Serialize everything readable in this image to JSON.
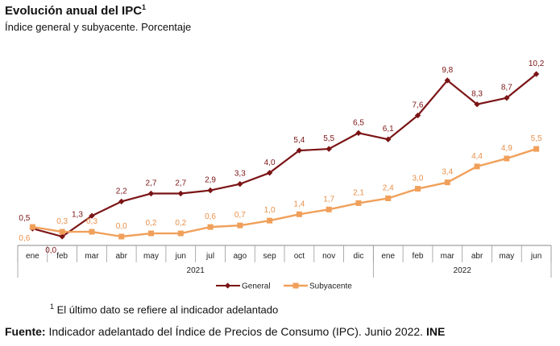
{
  "header": {
    "title": "Evolución anual del IPC",
    "title_sup": "1",
    "subtitle": "Índice general y subyacente. Porcentaje"
  },
  "chart_data": {
    "type": "line",
    "categories": [
      "ene",
      "feb",
      "mar",
      "abr",
      "may",
      "jun",
      "jul",
      "ago",
      "sep",
      "oct",
      "nov",
      "dic",
      "ene",
      "feb",
      "mar",
      "abr",
      "may",
      "jun"
    ],
    "year_groups": [
      {
        "label": "2021",
        "start": 0,
        "end": 11
      },
      {
        "label": "2022",
        "start": 12,
        "end": 17
      }
    ],
    "series": [
      {
        "name": "General",
        "color": "#7b1416",
        "values": [
          0.5,
          0.0,
          1.3,
          2.2,
          2.7,
          2.7,
          2.9,
          3.3,
          4.0,
          5.4,
          5.5,
          6.5,
          6.1,
          7.6,
          9.8,
          8.3,
          8.7,
          10.2
        ],
        "labels": [
          "0,5",
          "0,0",
          "1,3",
          "2,2",
          "2,7",
          "2,7",
          "2,9",
          "3,3",
          "4,0",
          "5,4",
          "5,5",
          "6,5",
          "6,1",
          "7,6",
          "9,8",
          "8,3",
          "8,7",
          "10,2"
        ]
      },
      {
        "name": "Subyacente",
        "color": "#f0a05a",
        "values": [
          0.6,
          0.3,
          0.3,
          0.0,
          0.2,
          0.2,
          0.6,
          0.7,
          1.0,
          1.4,
          1.7,
          2.1,
          2.4,
          3.0,
          3.4,
          4.4,
          4.9,
          5.5
        ],
        "labels": [
          "0,6",
          "0,3",
          "0,3",
          "0,0",
          "0,2",
          "0,2",
          "0,6",
          "0,7",
          "1,0",
          "1,4",
          "1,7",
          "2,1",
          "2,4",
          "3,0",
          "3,4",
          "4,4",
          "4,9",
          "5,5"
        ]
      }
    ],
    "ylim": [
      0,
      10.2
    ],
    "grid": false,
    "legend_position": "bottom-center"
  },
  "footnote": {
    "sup": "1",
    "text": " El último dato se refiere al indicador adelantado"
  },
  "source": {
    "label": "Fuente:",
    "text": " Indicador adelantado del Índice de Precios de Consumo (IPC).  Junio 2022. ",
    "bold_end": "INE"
  }
}
